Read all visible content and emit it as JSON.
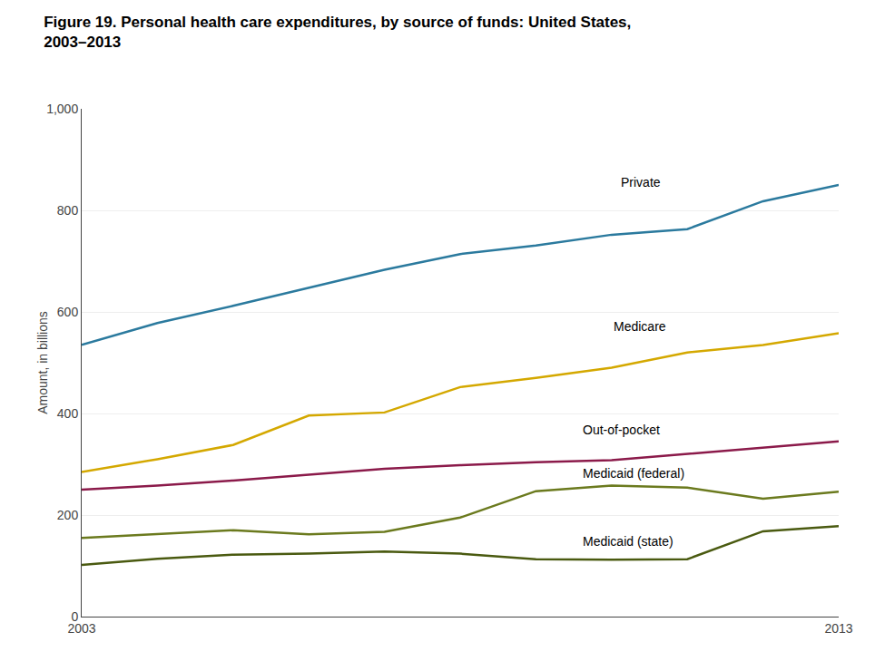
{
  "chart_data": {
    "type": "line",
    "title": "Figure 19. Personal health care expenditures, by source of funds: United States,",
    "subtitle": "2003–2013",
    "y_label": "Amount, in billions",
    "x": [
      2003,
      2004,
      2005,
      2006,
      2007,
      2008,
      2009,
      2010,
      2011,
      2012,
      2013
    ],
    "series": [
      {
        "name": "Private",
        "color": "#2b7a9e",
        "values": [
          535,
          578,
          612,
          648,
          683,
          714,
          731,
          752,
          763,
          818,
          850
        ]
      },
      {
        "name": "Medicare",
        "color": "#d4a800",
        "values": [
          285,
          310,
          338,
          396,
          402,
          452,
          470,
          490,
          520,
          535,
          558
        ]
      },
      {
        "name": "Out-of-pocket",
        "color": "#8b1a4a",
        "values": [
          250,
          258,
          268,
          280,
          291,
          298,
          304,
          308,
          320,
          332,
          345
        ]
      },
      {
        "name": "Medicaid (federal)",
        "color": "#6b7a1e",
        "values": [
          155,
          163,
          170,
          162,
          167,
          195,
          247,
          258,
          254,
          232,
          246
        ]
      },
      {
        "name": "Medicaid (state)",
        "color": "#4a5a10",
        "values": [
          102,
          114,
          122,
          124,
          128,
          124,
          113,
          112,
          113,
          168,
          178
        ]
      }
    ],
    "annotations": [
      {
        "text": "Private",
        "x": 2010.1,
        "y": 855
      },
      {
        "text": "Medicare",
        "x": 2010.0,
        "y": 572
      },
      {
        "text": "Out-of-pocket",
        "x": 2009.6,
        "y": 368
      },
      {
        "text": "Medicaid (federal)",
        "x": 2009.6,
        "y": 282
      },
      {
        "text": "Medicaid (state)",
        "x": 2009.6,
        "y": 148
      }
    ],
    "xlim": [
      2003,
      2013
    ],
    "xticks": [
      2003,
      2013
    ],
    "ylim": [
      0,
      1000
    ],
    "yticks": [
      0,
      200,
      400,
      600,
      800,
      {
        "value": 1000,
        "label": "1,000"
      }
    ],
    "grid": "y"
  }
}
